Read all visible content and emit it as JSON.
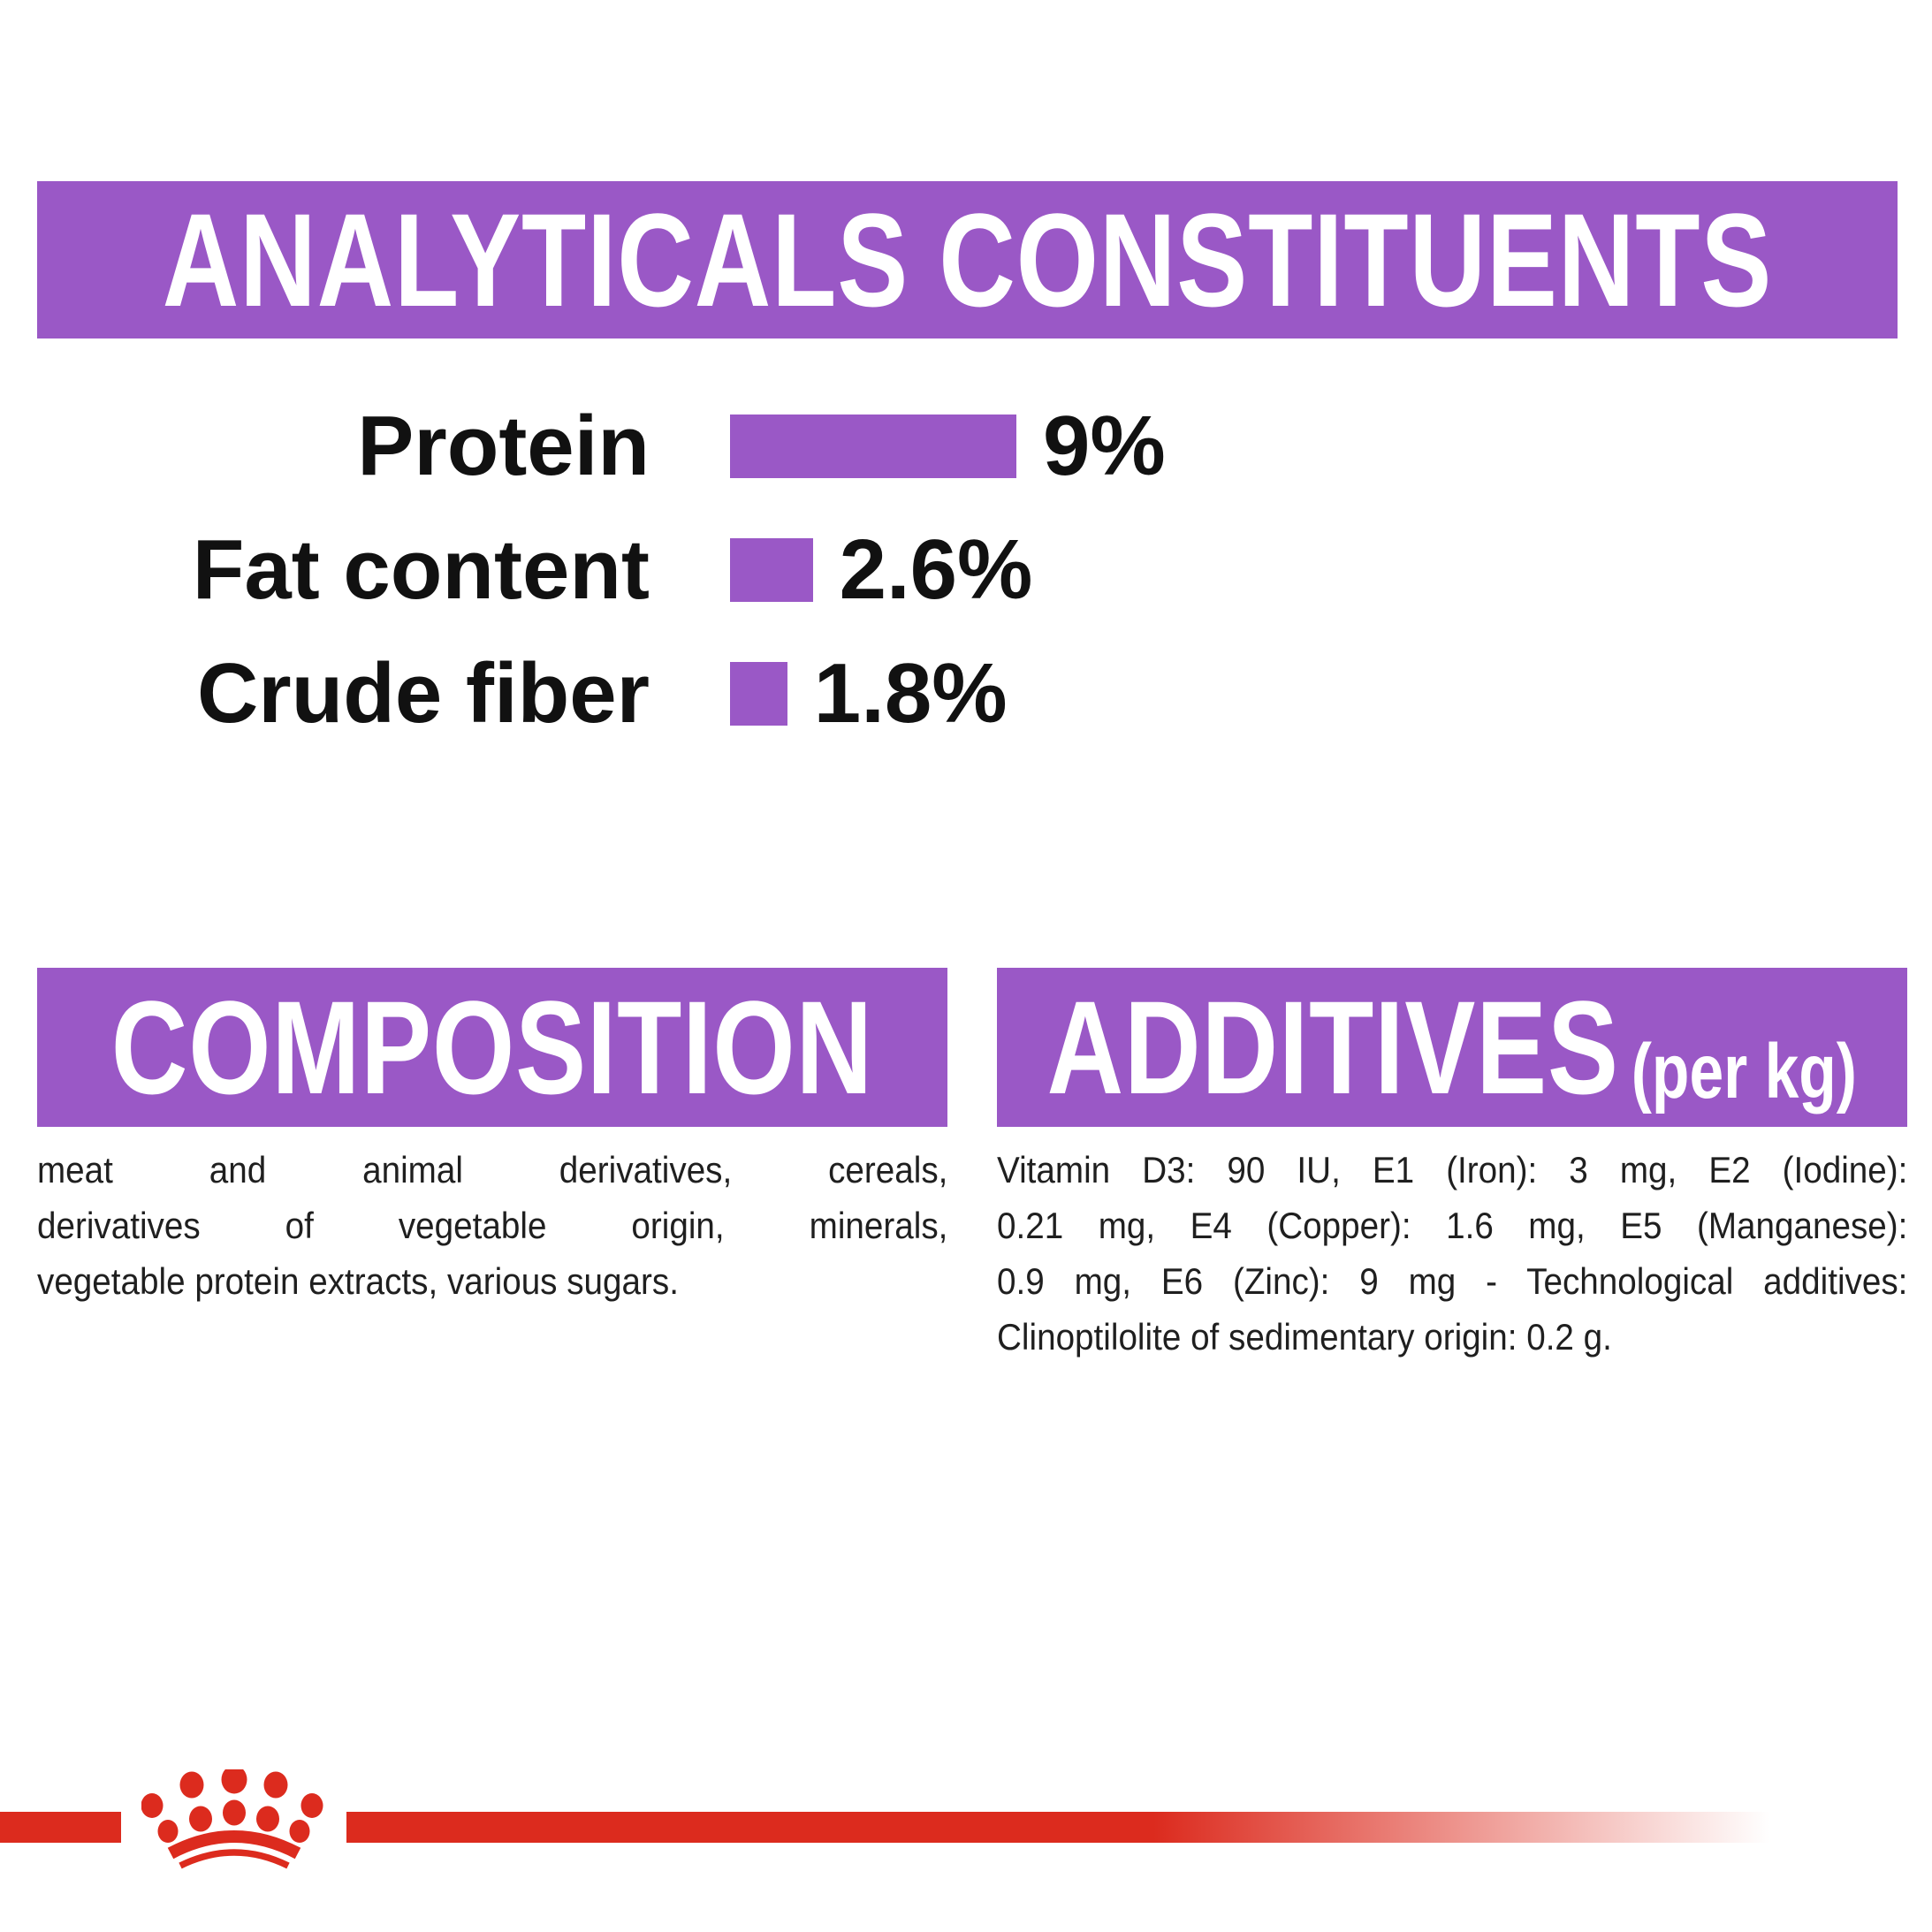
{
  "colors": {
    "purple": "#9A58C6",
    "red": "#DC2B1E",
    "heading_text": "#FFFFFF",
    "body_text": "#1F1F1F"
  },
  "analyticals": {
    "title": "ANALYTICALS CONSTITUENTS"
  },
  "chart_data": {
    "type": "bar",
    "orientation": "horizontal",
    "title": "ANALYTICALS CONSTITUENTS",
    "categories": [
      "Protein",
      "Fat content",
      "Crude fiber"
    ],
    "values": [
      9,
      2.6,
      1.8
    ],
    "value_labels": [
      "9%",
      "2.6%",
      "1.8%"
    ],
    "unit": "%",
    "xlim": [
      0,
      9
    ],
    "bar_color": "#9A58C6",
    "grid": false,
    "legend": false
  },
  "composition": {
    "title": "COMPOSITION",
    "lines": [
      "meat and animal derivatives, cereals,",
      "derivatives of vegetable origin, minerals,",
      "vegetable protein extracts, various sugars."
    ]
  },
  "additives": {
    "title": "ADDITIVES",
    "suffix": "(per kg)",
    "lines": [
      "Vitamin D3: 90 IU, E1 (Iron): 3 mg, E2 (Iodine):",
      "0.21 mg, E4 (Copper): 1.6 mg, E5 (Manganese):",
      "0.9 mg, E6 (Zinc): 9 mg - Technological additives:",
      "Clinoptilolite of sedimentary origin: 0.2 g."
    ]
  },
  "brand": {
    "logo": "royal-canin-crown"
  }
}
